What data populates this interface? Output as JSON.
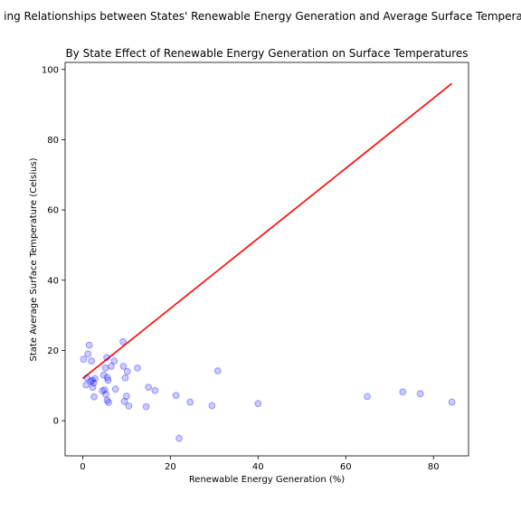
{
  "figure": {
    "suptitle": "ing Relationships between States' Renewable Energy Generation and Average Surface Tempera"
  },
  "chart_data": {
    "type": "scatter",
    "title": "By State Effect of Renewable Energy Generation on Surface Temperatures",
    "xlabel": "Renewable Energy Generation (%)",
    "ylabel": "State Average Surface Temperature (Celsius)",
    "xlim": [
      -4,
      88
    ],
    "ylim": [
      -10,
      102
    ],
    "xticks": [
      0,
      20,
      40,
      60,
      80
    ],
    "yticks": [
      0,
      20,
      40,
      60,
      80,
      100
    ],
    "grid": false,
    "colors": {
      "points": "#0000ff",
      "fit_line": "#ff0000"
    },
    "points": [
      {
        "x": 0.2,
        "y": 17.5
      },
      {
        "x": 0.8,
        "y": 10.2
      },
      {
        "x": 1.0,
        "y": 12.2
      },
      {
        "x": 1.2,
        "y": 19.0
      },
      {
        "x": 1.5,
        "y": 21.5
      },
      {
        "x": 1.8,
        "y": 11.2
      },
      {
        "x": 2.0,
        "y": 17.0
      },
      {
        "x": 2.2,
        "y": 11.5
      },
      {
        "x": 2.3,
        "y": 9.5
      },
      {
        "x": 2.5,
        "y": 10.8
      },
      {
        "x": 2.6,
        "y": 6.8
      },
      {
        "x": 2.8,
        "y": 12.0
      },
      {
        "x": 4.5,
        "y": 8.5
      },
      {
        "x": 4.8,
        "y": 13.0
      },
      {
        "x": 5.0,
        "y": 8.8
      },
      {
        "x": 5.2,
        "y": 15.0
      },
      {
        "x": 5.3,
        "y": 7.5
      },
      {
        "x": 5.5,
        "y": 18.0
      },
      {
        "x": 5.6,
        "y": 12.3
      },
      {
        "x": 5.8,
        "y": 11.5
      },
      {
        "x": 5.6,
        "y": 5.8
      },
      {
        "x": 5.9,
        "y": 5.2
      },
      {
        "x": 6.5,
        "y": 15.5
      },
      {
        "x": 7.2,
        "y": 17.0
      },
      {
        "x": 7.5,
        "y": 9.0
      },
      {
        "x": 9.2,
        "y": 22.5
      },
      {
        "x": 9.3,
        "y": 15.5
      },
      {
        "x": 9.5,
        "y": 5.5
      },
      {
        "x": 9.7,
        "y": 12.2
      },
      {
        "x": 10.0,
        "y": 7.0
      },
      {
        "x": 10.2,
        "y": 14.0
      },
      {
        "x": 10.5,
        "y": 4.2
      },
      {
        "x": 12.5,
        "y": 15.0
      },
      {
        "x": 14.5,
        "y": 4.0
      },
      {
        "x": 15.0,
        "y": 9.5
      },
      {
        "x": 16.5,
        "y": 8.6
      },
      {
        "x": 21.3,
        "y": 7.2
      },
      {
        "x": 22.0,
        "y": -5.0
      },
      {
        "x": 24.5,
        "y": 5.3
      },
      {
        "x": 29.5,
        "y": 4.3
      },
      {
        "x": 30.8,
        "y": 14.2
      },
      {
        "x": 40.0,
        "y": 4.9
      },
      {
        "x": 64.9,
        "y": 6.9
      },
      {
        "x": 73.0,
        "y": 8.2
      },
      {
        "x": 77.0,
        "y": 7.7
      },
      {
        "x": 84.2,
        "y": 5.3
      }
    ],
    "fit_line": {
      "x": [
        0,
        84.2
      ],
      "y": [
        12.0,
        96.0
      ]
    }
  }
}
